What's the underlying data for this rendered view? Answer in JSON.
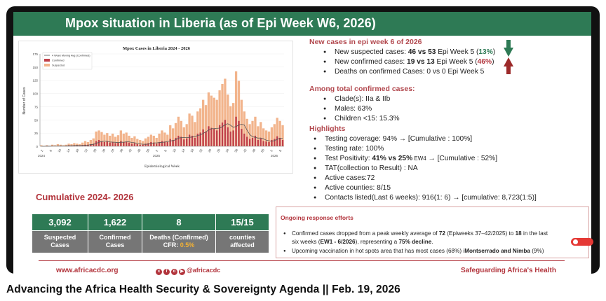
{
  "slide": {
    "title": "Mpox situation in Liberia (as of Epi Week W6, 2026)",
    "new_cases": {
      "heading": "New cases in epi week 6 of 2026",
      "suspected_pre": "New suspected cases: ",
      "suspected_val": "46 vs 53",
      "suspected_mid": " Epi Week 5 (",
      "suspected_pct": "13%",
      "suspected_post": ")",
      "confirmed_pre": "New confirmed cases: ",
      "confirmed_val": "19 vs 13",
      "confirmed_mid": " Epi Week 5 (",
      "confirmed_pct": "46%",
      "confirmed_post": ")",
      "deaths": "Deaths on confirmed Cases: 0 vs 0  Epi Week 5"
    },
    "total_confirmed": {
      "heading": "Among total confirmed cases:",
      "clade": "Clade(s): IIa & IIb",
      "males": "Males: 63%",
      "children": "Children <15: 15.3%"
    },
    "highlights": {
      "heading": "Highlights",
      "coverage": "Testing coverage: 94%  →  [Cumulative : 100%]",
      "rate": "Testing rate: 100%",
      "positivity_pre": "Test Positivity: ",
      "positivity_val": "41% vs 25%",
      "positivity_ew": " EW4",
      "positivity_post": " →  [Cumulative : 52%]",
      "tat": "TAT(collection to Result) : NA",
      "active_cases": "Active cases:72",
      "active_counties": "Active counties: 8/15",
      "contacts": "Contacts listed(Last 6 weeks): 916(1: 6)   → [cumulative: 8,723(1:5)]"
    },
    "cumulative": {
      "title": "Cumulative 2024- 2026",
      "cards": [
        {
          "value": "3,092",
          "label1": "Suspected",
          "label2": "Cases"
        },
        {
          "value": "1,622",
          "label1": "Confirmed",
          "label2": "Cases"
        },
        {
          "value": "8",
          "label1": "Deaths (Confirmed)",
          "label2": "CFR: ",
          "label2_accent": "0.5%"
        },
        {
          "value": "15/15",
          "label1": "counties",
          "label2": "affected"
        }
      ]
    },
    "response": {
      "title": "Ongoing response efforts",
      "b1_a": "Confirmed cases dropped from a peak weekly average of ",
      "b1_b": "72",
      "b1_c": " (Epiweeks 37–42/2025) to ",
      "b1_d": "18",
      "b1_e": " in the last",
      "b1_f": "six weeks (",
      "b1_g": "EW1 - 6/2026",
      "b1_h": "), representing a ",
      "b1_i": "75% decline",
      "b1_j": ".",
      "b2_a": "Upcoming vaccination in hot spots area that has most cases (68%) i",
      "b2_b": "Montserrado and Nimba",
      "b2_c": " (9%)"
    },
    "footer": {
      "url": "www.africacdc.org",
      "social": "@africacdc",
      "tagline": "Safeguarding Africa's Health"
    }
  },
  "video": {
    "title": "Advancing the Africa Health Security & Sovereignty Agenda || Feb. 19, 2026"
  },
  "colors": {
    "green": "#2e7a55",
    "red": "#b2343c",
    "bar_suspected": "#f2b48c",
    "bar_confirmed": "#c0404a",
    "line": "#555555"
  },
  "chart_data": {
    "type": "bar",
    "title": "Mpox Cases in Liberia 2024 - 2026",
    "xlabel": "Epidemiological Week",
    "ylabel": "Number of Cases",
    "ylim": [
      0,
      175
    ],
    "yticks": [
      0,
      25,
      50,
      75,
      100,
      125,
      150,
      175
    ],
    "xticks": [
      "2",
      "6",
      "10",
      "14",
      "18",
      "22",
      "26",
      "30",
      "34",
      "38",
      "42",
      "46",
      "50",
      "2",
      "6",
      "10",
      "14",
      "18",
      "22",
      "26",
      "30",
      "34",
      "38",
      "42",
      "46",
      "50",
      "2",
      "6"
    ],
    "year_labels": [
      "2024",
      "2025",
      "2026"
    ],
    "legend_placement": "top-left",
    "legend": [
      "4 Week Moving Avg (Confirmed)",
      "Confirmed",
      "Suspected"
    ],
    "suspected": [
      2,
      1,
      2,
      1,
      3,
      2,
      4,
      3,
      2,
      3,
      5,
      4,
      6,
      5,
      4,
      7,
      10,
      8,
      12,
      15,
      28,
      30,
      27,
      22,
      25,
      20,
      24,
      18,
      21,
      30,
      24,
      26,
      20,
      16,
      19,
      14,
      12,
      10,
      15,
      18,
      22,
      20,
      16,
      24,
      30,
      26,
      22,
      40,
      34,
      44,
      56,
      48,
      36,
      42,
      62,
      58,
      46,
      66,
      72,
      88,
      78,
      102,
      96,
      92,
      88,
      106,
      118,
      128,
      98,
      76,
      82,
      142,
      124,
      88,
      66,
      52,
      42,
      48,
      56,
      38,
      46,
      34,
      30,
      28,
      36,
      42,
      54,
      48,
      40
    ],
    "confirmed": [
      0,
      0,
      1,
      0,
      1,
      0,
      1,
      1,
      0,
      1,
      2,
      1,
      2,
      2,
      1,
      2,
      3,
      3,
      4,
      5,
      10,
      12,
      9,
      8,
      9,
      7,
      8,
      6,
      7,
      10,
      8,
      9,
      7,
      5,
      6,
      4,
      3,
      3,
      5,
      6,
      8,
      7,
      5,
      8,
      10,
      9,
      8,
      14,
      12,
      16,
      20,
      18,
      13,
      15,
      22,
      20,
      16,
      24,
      26,
      32,
      28,
      38,
      35,
      33,
      30,
      40,
      45,
      50,
      36,
      28,
      30,
      56,
      48,
      33,
      24,
      18,
      14,
      16,
      20,
      12,
      15,
      10,
      9,
      8,
      12,
      14,
      19,
      16,
      12
    ]
  }
}
